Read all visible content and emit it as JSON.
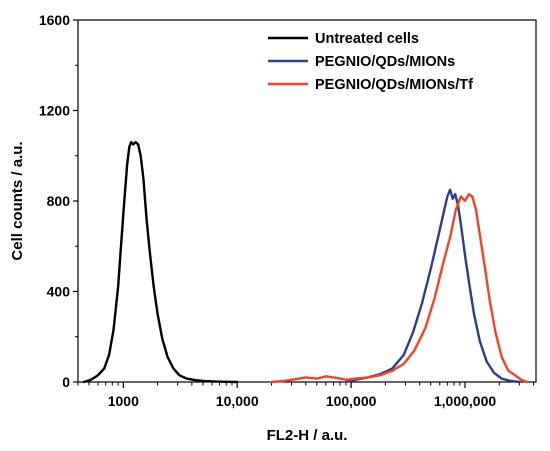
{
  "chart_data": {
    "type": "line",
    "xlabel": "FL2-H / a.u.",
    "ylabel": "Cell counts / a.u.",
    "x_scale": "log",
    "xlim": [
      400,
      4200000
    ],
    "ylim": [
      0,
      1600
    ],
    "x_ticks": [
      {
        "value": 1000,
        "label": "1000"
      },
      {
        "value": 10000,
        "label": "10,000"
      },
      {
        "value": 100000,
        "label": "100,000"
      },
      {
        "value": 1000000,
        "label": "1,000,000"
      }
    ],
    "y_ticks": [
      {
        "value": 0,
        "label": "0"
      },
      {
        "value": 400,
        "label": "400"
      },
      {
        "value": 800,
        "label": "800"
      },
      {
        "value": 1200,
        "label": "1200"
      },
      {
        "value": 1600,
        "label": "1600"
      }
    ],
    "grid": false,
    "legend_position": "top-right",
    "series": [
      {
        "name": "Untreated cells",
        "color": "#000000",
        "points": [
          [
            450,
            0
          ],
          [
            520,
            10
          ],
          [
            600,
            30
          ],
          [
            680,
            60
          ],
          [
            750,
            120
          ],
          [
            820,
            230
          ],
          [
            900,
            420
          ],
          [
            960,
            620
          ],
          [
            1020,
            800
          ],
          [
            1080,
            960
          ],
          [
            1130,
            1040
          ],
          [
            1170,
            1060
          ],
          [
            1220,
            1050
          ],
          [
            1280,
            1060
          ],
          [
            1350,
            1050
          ],
          [
            1420,
            1000
          ],
          [
            1500,
            900
          ],
          [
            1600,
            720
          ],
          [
            1720,
            560
          ],
          [
            1850,
            420
          ],
          [
            2000,
            300
          ],
          [
            2200,
            190
          ],
          [
            2450,
            110
          ],
          [
            2750,
            60
          ],
          [
            3100,
            30
          ],
          [
            3600,
            15
          ],
          [
            4300,
            8
          ],
          [
            5200,
            4
          ],
          [
            6500,
            2
          ],
          [
            8000,
            1
          ],
          [
            10000,
            0
          ]
        ]
      },
      {
        "name": "PEGNIO/QDs/MIONs",
        "color": "#2c3e88",
        "points": [
          [
            90000,
            0
          ],
          [
            110000,
            10
          ],
          [
            140000,
            20
          ],
          [
            180000,
            35
          ],
          [
            230000,
            60
          ],
          [
            290000,
            120
          ],
          [
            350000,
            220
          ],
          [
            420000,
            350
          ],
          [
            500000,
            500
          ],
          [
            580000,
            640
          ],
          [
            650000,
            750
          ],
          [
            700000,
            820
          ],
          [
            740000,
            850
          ],
          [
            780000,
            810
          ],
          [
            820000,
            830
          ],
          [
            870000,
            780
          ],
          [
            930000,
            680
          ],
          [
            1000000,
            560
          ],
          [
            1100000,
            420
          ],
          [
            1200000,
            300
          ],
          [
            1350000,
            180
          ],
          [
            1550000,
            90
          ],
          [
            1800000,
            40
          ],
          [
            2100000,
            15
          ],
          [
            2500000,
            5
          ],
          [
            3000000,
            0
          ]
        ]
      },
      {
        "name": "PEGNIO/QDs/MIONs/Tf",
        "color": "#f0442a",
        "points": [
          [
            20000,
            0
          ],
          [
            26000,
            5
          ],
          [
            32000,
            12
          ],
          [
            40000,
            20
          ],
          [
            50000,
            15
          ],
          [
            60000,
            25
          ],
          [
            75000,
            18
          ],
          [
            90000,
            10
          ],
          [
            110000,
            15
          ],
          [
            140000,
            20
          ],
          [
            180000,
            30
          ],
          [
            230000,
            50
          ],
          [
            290000,
            80
          ],
          [
            360000,
            140
          ],
          [
            450000,
            240
          ],
          [
            540000,
            370
          ],
          [
            640000,
            520
          ],
          [
            740000,
            640
          ],
          [
            830000,
            760
          ],
          [
            920000,
            820
          ],
          [
            1000000,
            800
          ],
          [
            1080000,
            830
          ],
          [
            1160000,
            820
          ],
          [
            1250000,
            760
          ],
          [
            1350000,
            650
          ],
          [
            1480000,
            520
          ],
          [
            1650000,
            360
          ],
          [
            1850000,
            220
          ],
          [
            2100000,
            110
          ],
          [
            2400000,
            50
          ],
          [
            2750000,
            30
          ],
          [
            3100000,
            10
          ],
          [
            3500000,
            0
          ]
        ]
      }
    ]
  }
}
